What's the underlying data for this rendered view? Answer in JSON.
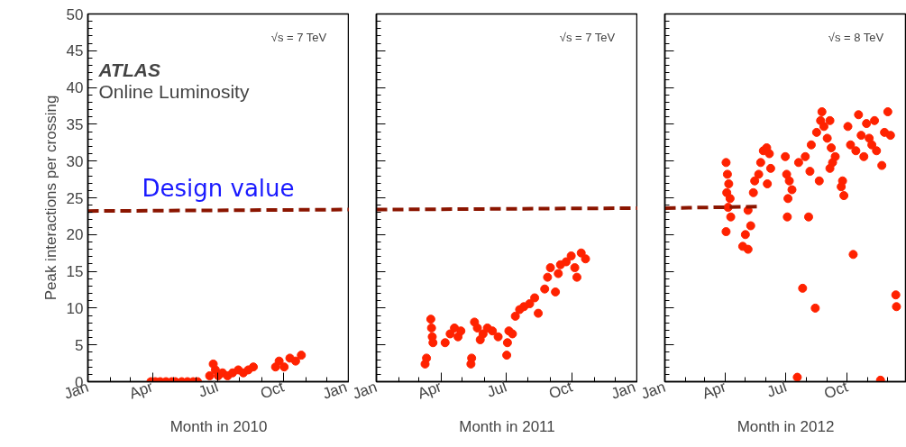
{
  "chart_data": [
    {
      "type": "scatter",
      "xlabel": "Month in 2010",
      "ylabel": "Peak interactions per crossing",
      "xlim": [
        "2010-01-01",
        "2011-01-01"
      ],
      "ylim": [
        0,
        50
      ],
      "xticks": [
        {
          "value": "2010-01-01",
          "label": "Jan"
        },
        {
          "value": "2010-04-01",
          "label": "Apr"
        },
        {
          "value": "2010-07-01",
          "label": "Jul"
        },
        {
          "value": "2010-10-01",
          "label": "Oct"
        },
        {
          "value": "2011-01-01",
          "label": "Jan"
        }
      ],
      "yticks": [
        0,
        5,
        10,
        15,
        20,
        25,
        30,
        35,
        40,
        45,
        50
      ],
      "annotations": [
        "√s = 7 TeV",
        "ATLAS",
        "Online Luminosity",
        "Design value"
      ],
      "series": [
        {
          "marker": "circle",
          "color": "#ff2200",
          "x": [
            "2010-03-30",
            "2010-04-05",
            "2010-04-12",
            "2010-04-20",
            "2010-04-28",
            "2010-05-03",
            "2010-05-12",
            "2010-05-20",
            "2010-05-28",
            "2010-06-03",
            "2010-06-20",
            "2010-06-25",
            "2010-06-28",
            "2010-07-02",
            "2010-07-08",
            "2010-07-15",
            "2010-07-22",
            "2010-07-30",
            "2010-08-06",
            "2010-08-13",
            "2010-08-20",
            "2010-09-20",
            "2010-09-25",
            "2010-10-02",
            "2010-10-10",
            "2010-10-18",
            "2010-10-26"
          ],
          "values": [
            0,
            0,
            0,
            0,
            0,
            0,
            0,
            0,
            0,
            0,
            0.8,
            2.4,
            1.6,
            0.8,
            1.2,
            0.8,
            1.2,
            1.6,
            1.2,
            1.6,
            2.0,
            2.0,
            2.8,
            2.0,
            3.2,
            2.8,
            3.6
          ]
        },
        {
          "type": "line",
          "color": "#8b1500",
          "line_style": "dashed",
          "x": [
            "2010-01-01",
            "2011-01-01"
          ],
          "values": [
            23.2,
            23.4
          ]
        }
      ]
    },
    {
      "type": "scatter",
      "xlabel": "Month in 2011",
      "tick_labels": "x",
      "xlim": [
        "2011-01-01",
        "2012-01-01"
      ],
      "ylim": [
        0,
        50
      ],
      "xticks": [
        {
          "value": "2011-01-01",
          "label": "Jan"
        },
        {
          "value": "2011-04-01",
          "label": "Apr"
        },
        {
          "value": "2011-07-01",
          "label": "Jul"
        },
        {
          "value": "2011-10-01",
          "label": "Oct"
        },
        {
          "value": "2012-01-01",
          "label": "Jan"
        }
      ],
      "yticks": [
        0,
        5,
        10,
        15,
        20,
        25,
        30,
        35,
        40,
        45,
        50
      ],
      "annotations": [
        "√s = 7 TeV"
      ],
      "series": [
        {
          "marker": "circle",
          "color": "#ff2200",
          "x": [
            "2011-03-10",
            "2011-03-12",
            "2011-03-18",
            "2011-03-19",
            "2011-03-20",
            "2011-03-21",
            "2011-04-07",
            "2011-04-14",
            "2011-04-20",
            "2011-04-25",
            "2011-04-29",
            "2011-05-13",
            "2011-05-14",
            "2011-05-18",
            "2011-05-22",
            "2011-05-26",
            "2011-05-30",
            "2011-06-05",
            "2011-06-12",
            "2011-06-20",
            "2011-07-02",
            "2011-07-03",
            "2011-07-05",
            "2011-07-10",
            "2011-07-14",
            "2011-07-20",
            "2011-07-26",
            "2011-08-03",
            "2011-08-10",
            "2011-08-15",
            "2011-08-24",
            "2011-08-28",
            "2011-09-01",
            "2011-09-08",
            "2011-09-12",
            "2011-09-15",
            "2011-09-23",
            "2011-09-30",
            "2011-10-05",
            "2011-10-08",
            "2011-10-14",
            "2011-10-20"
          ],
          "values": [
            2.4,
            3.2,
            8.5,
            7.3,
            6.1,
            5.3,
            5.3,
            6.5,
            7.3,
            6.1,
            6.9,
            2.4,
            3.2,
            8.1,
            7.3,
            5.7,
            6.5,
            7.3,
            6.9,
            6.1,
            3.6,
            5.3,
            6.9,
            6.5,
            8.9,
            9.8,
            10.2,
            10.6,
            11.4,
            9.3,
            12.6,
            14.2,
            15.5,
            12.2,
            14.7,
            15.9,
            16.3,
            17.1,
            15.5,
            14.2,
            17.5,
            16.7
          ]
        },
        {
          "type": "line",
          "color": "#8b1500",
          "line_style": "dashed",
          "x": [
            "2011-01-01",
            "2012-01-01"
          ],
          "values": [
            23.4,
            23.6
          ]
        }
      ]
    },
    {
      "type": "scatter",
      "xlabel": "Month in 2012",
      "tick_labels": "x",
      "xlim": [
        "2012-01-01",
        "2012-12-29"
      ],
      "ylim": [
        0,
        50
      ],
      "xticks": [
        {
          "value": "2012-01-01",
          "label": "Jan"
        },
        {
          "value": "2012-04-01",
          "label": "Apr"
        },
        {
          "value": "2012-07-01",
          "label": "Jul"
        },
        {
          "value": "2012-10-01",
          "label": "Oct"
        }
      ],
      "yticks": [
        0,
        5,
        10,
        15,
        20,
        25,
        30,
        35,
        40,
        45,
        50
      ],
      "annotations": [
        "√s = 8 TeV"
      ],
      "series": [
        {
          "marker": "circle",
          "color": "#ff2200",
          "x": [
            "2012-04-02",
            "2012-04-04",
            "2012-04-06",
            "2012-04-03",
            "2012-04-08",
            "2012-04-05",
            "2012-04-09",
            "2012-04-02",
            "2012-04-27",
            "2012-05-05",
            "2012-05-01",
            "2012-05-09",
            "2012-05-05",
            "2012-05-13",
            "2012-05-15",
            "2012-05-21",
            "2012-05-24",
            "2012-05-28",
            "2012-06-02",
            "2012-06-06",
            "2012-06-08",
            "2012-06-03",
            "2012-06-30",
            "2012-07-02",
            "2012-07-04",
            "2012-07-03",
            "2012-07-06",
            "2012-07-10",
            "2012-07-18",
            "2012-07-20",
            "2012-07-26",
            "2012-08-04",
            "2012-07-30",
            "2012-08-06",
            "2012-08-08",
            "2012-08-14",
            "2012-08-20",
            "2012-08-16",
            "2012-08-24",
            "2012-08-22",
            "2012-08-27",
            "2012-09-01",
            "2012-09-05",
            "2012-09-07",
            "2012-09-09",
            "2012-09-13",
            "2012-09-05",
            "2012-09-24",
            "2012-09-26",
            "2012-09-22",
            "2012-10-10",
            "2012-10-02",
            "2012-10-06",
            "2012-10-14",
            "2012-10-18",
            "2012-10-22",
            "2012-10-26",
            "2012-10-30",
            "2012-11-03",
            "2012-11-07",
            "2012-11-11",
            "2012-11-14",
            "2012-11-20",
            "2012-11-22",
            "2012-11-26",
            "2012-12-01",
            "2012-12-05",
            "2012-12-13",
            "2012-12-14"
          ],
          "values": [
            29.8,
            28.2,
            26.9,
            25.7,
            24.9,
            23.7,
            22.4,
            20.4,
            18.4,
            18.0,
            20.0,
            21.2,
            23.3,
            25.7,
            27.3,
            28.2,
            29.8,
            31.4,
            31.8,
            31.0,
            29.0,
            26.9,
            30.6,
            28.2,
            24.9,
            22.4,
            27.3,
            26.1,
            0.6,
            29.8,
            12.7,
            22.4,
            30.6,
            28.6,
            32.2,
            10.0,
            27.3,
            33.9,
            36.7,
            35.5,
            34.7,
            33.1,
            35.5,
            31.8,
            29.8,
            30.6,
            29.0,
            27.3,
            25.3,
            26.5,
            17.3,
            34.7,
            32.2,
            31.4,
            36.3,
            33.5,
            30.6,
            35.1,
            33.1,
            32.2,
            35.5,
            31.4,
            0.2,
            29.4,
            33.9,
            36.7,
            33.5,
            11.8,
            10.2
          ]
        },
        {
          "type": "line",
          "color": "#8b1500",
          "line_style": "dashed",
          "x": [
            "2012-01-01",
            "2012-05-20"
          ],
          "values": [
            23.6,
            23.8
          ]
        }
      ]
    }
  ]
}
